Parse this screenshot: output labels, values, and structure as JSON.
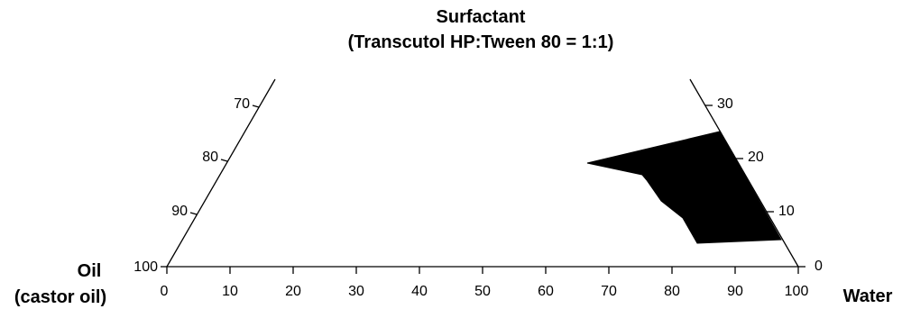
{
  "diagram": {
    "title_line1": "Surfactant",
    "title_line2": "(Transcutol HP:Tween 80 = 1:1)",
    "corner_left_line1": "Oil",
    "corner_left_line2": "(castor oil)",
    "corner_right": "Water"
  },
  "axes": {
    "bottom_ticks": [
      "0",
      "10",
      "20",
      "30",
      "40",
      "50",
      "60",
      "70",
      "80",
      "90",
      "100"
    ],
    "left_ticks": [
      "70",
      "80",
      "90",
      "100"
    ],
    "right_ticks": [
      "30",
      "20",
      "10",
      "0"
    ]
  },
  "region": {
    "fill": "#000000",
    "description_points_water_surfactant": [
      [
        66,
        20
      ],
      [
        88,
        26
      ],
      [
        97,
        5
      ],
      [
        84,
        4
      ],
      [
        79,
        9
      ],
      [
        76,
        15
      ],
      [
        74,
        17
      ]
    ]
  }
}
